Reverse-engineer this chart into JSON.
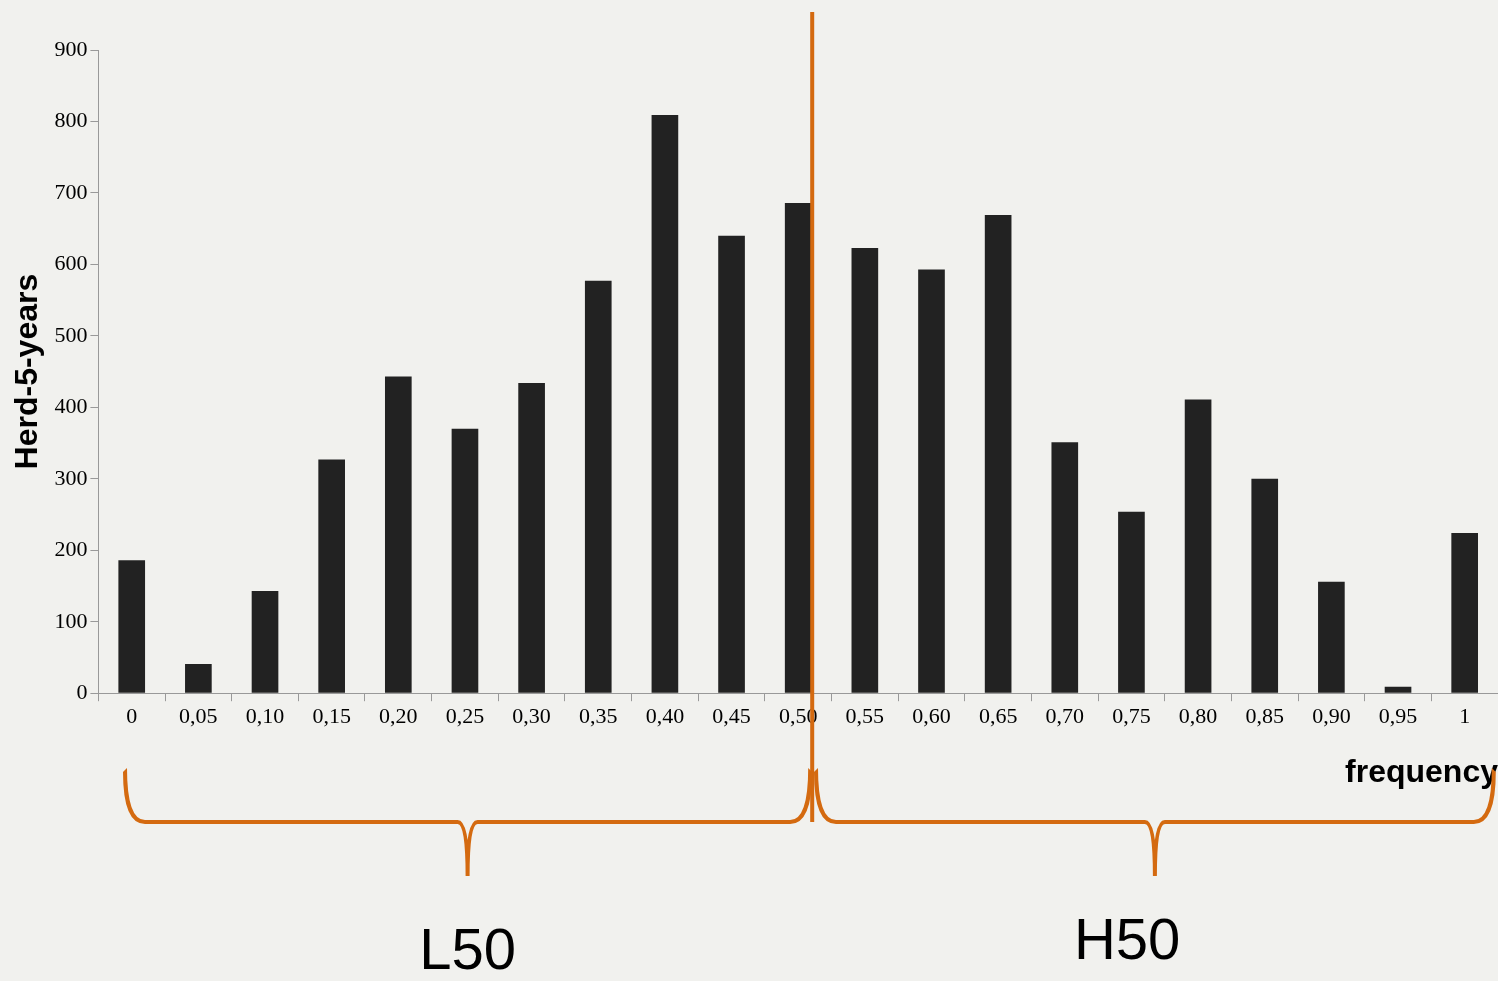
{
  "chart_data": {
    "type": "bar",
    "xlabel": "frequency",
    "ylabel": "Herd-5-years",
    "categories": [
      "0",
      "0,05",
      "0,10",
      "0,15",
      "0,20",
      "0,25",
      "0,30",
      "0,35",
      "0,40",
      "0,45",
      "0,50",
      "0,55",
      "0,60",
      "0,65",
      "0,70",
      "0,75",
      "0,80",
      "0,85",
      "0,90",
      "0,95",
      "1"
    ],
    "values": [
      186,
      41,
      143,
      327,
      443,
      370,
      434,
      577,
      809,
      640,
      686,
      623,
      593,
      669,
      351,
      254,
      411,
      300,
      156,
      9,
      224
    ],
    "color": "#222222",
    "ylim": [
      0,
      900
    ],
    "yticks": [
      0,
      100,
      200,
      300,
      400,
      500,
      600,
      700,
      800,
      900
    ],
    "grid": false,
    "legend": false,
    "ref_lines": [
      {
        "axis": "x",
        "value": "0,50",
        "color": "#d46a10"
      }
    ],
    "annotations": [
      "L50",
      "H50"
    ]
  }
}
